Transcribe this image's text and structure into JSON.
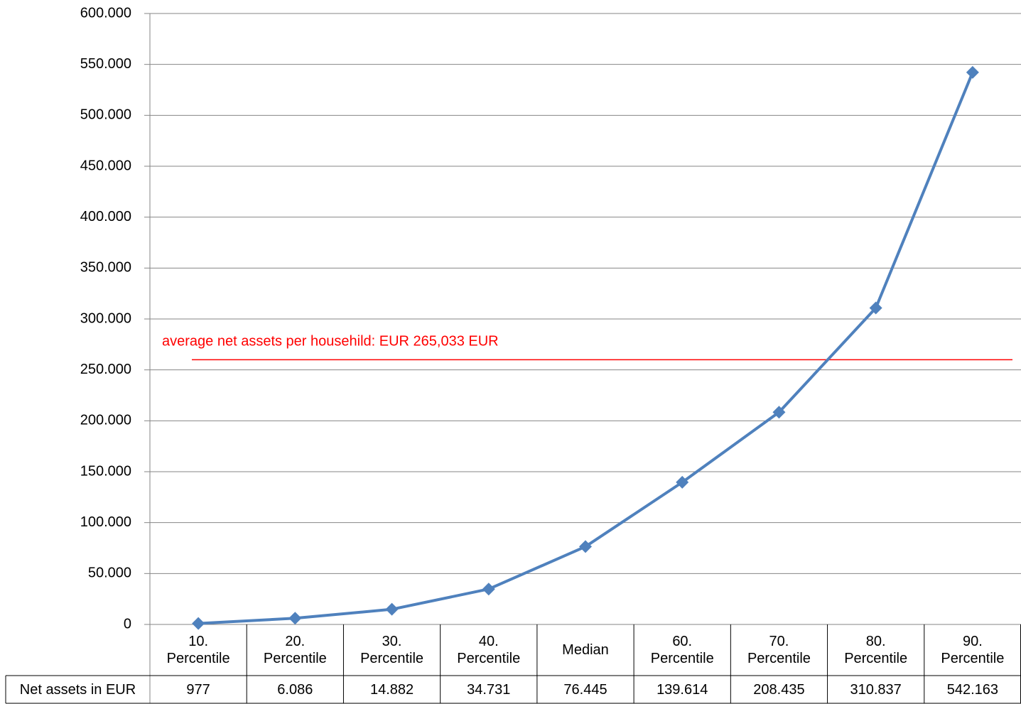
{
  "chart_data": {
    "type": "line",
    "categories": [
      "10. Percentile",
      "20. Percentile",
      "30. Percentile",
      "40. Percentile",
      "Median",
      "60. Percentile",
      "70. Percentile",
      "80. Percentile",
      "90. Percentile"
    ],
    "series": [
      {
        "name": "Net assets in EUR",
        "color": "#4f81bd",
        "values": [
          977,
          6086,
          14882,
          34731,
          76445,
          139614,
          208435,
          310837,
          542163
        ],
        "value_labels": [
          "977",
          "6.086",
          "14.882",
          "34.731",
          "76.445",
          "139.614",
          "208.435",
          "310.837",
          "542.163"
        ]
      }
    ],
    "ylim": [
      0,
      600000
    ],
    "yticks": [
      0,
      {
        "value": 50000,
        "label": "50.000"
      },
      {
        "value": 100000,
        "label": "100.000"
      },
      {
        "value": 150000,
        "label": "150.000"
      },
      {
        "value": 200000,
        "label": "200.000"
      },
      {
        "value": 250000,
        "label": "250.000"
      },
      {
        "value": 300000,
        "label": "300.000"
      },
      {
        "value": 350000,
        "label": "350.000"
      },
      {
        "value": 400000,
        "label": "400.000"
      },
      {
        "value": 450000,
        "label": "450.000"
      },
      {
        "value": 500000,
        "label": "500.000"
      },
      {
        "value": 550000,
        "label": "550.000"
      },
      {
        "value": 600000,
        "label": "600.000"
      }
    ],
    "grid": true,
    "annotations": [
      {
        "text": "average net assets per househild: EUR 265,033 EUR",
        "y": 260000,
        "color": "#ff0000"
      }
    ]
  }
}
